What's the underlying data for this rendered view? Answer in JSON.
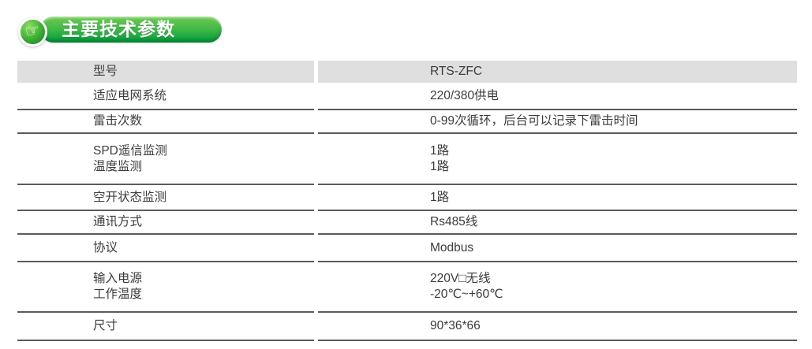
{
  "section_header": {
    "title": "主要技术参数",
    "icon": "pointing-hand"
  },
  "table": {
    "header": {
      "label": "型号",
      "value": "RTS-ZFC"
    },
    "rows": [
      {
        "label": [
          "适应电网系统"
        ],
        "value": [
          "220/380供电"
        ]
      },
      {
        "label": [
          "雷击次数"
        ],
        "value": [
          "0-99次循环，后台可以记录下雷击时间"
        ]
      },
      {
        "label": [
          "SPD遥信监测",
          "温度监测"
        ],
        "value": [
          "1路",
          "1路"
        ]
      },
      {
        "label": [
          "空开状态监测"
        ],
        "value": [
          "1路"
        ]
      },
      {
        "label": [
          "通讯方式"
        ],
        "value": [
          "Rs485线"
        ]
      },
      {
        "label": [
          "协议"
        ],
        "value": [
          "Modbus"
        ]
      },
      {
        "label": [
          "输入电源",
          "工作温度"
        ],
        "value": [
          "220V□无线",
          "-20℃~+60℃"
        ]
      },
      {
        "label": [
          "尺寸"
        ],
        "value": [
          "90*36*66"
        ]
      }
    ]
  },
  "icons": {
    "pointing_hand_glyph": "☞"
  },
  "colors": {
    "badge_gradient_top": "#6fca52",
    "badge_gradient_bottom": "#009a3e",
    "header_row_bg": "#dfdfdf",
    "row_border": "#5b5b5b",
    "text": "#3c3c3c"
  }
}
